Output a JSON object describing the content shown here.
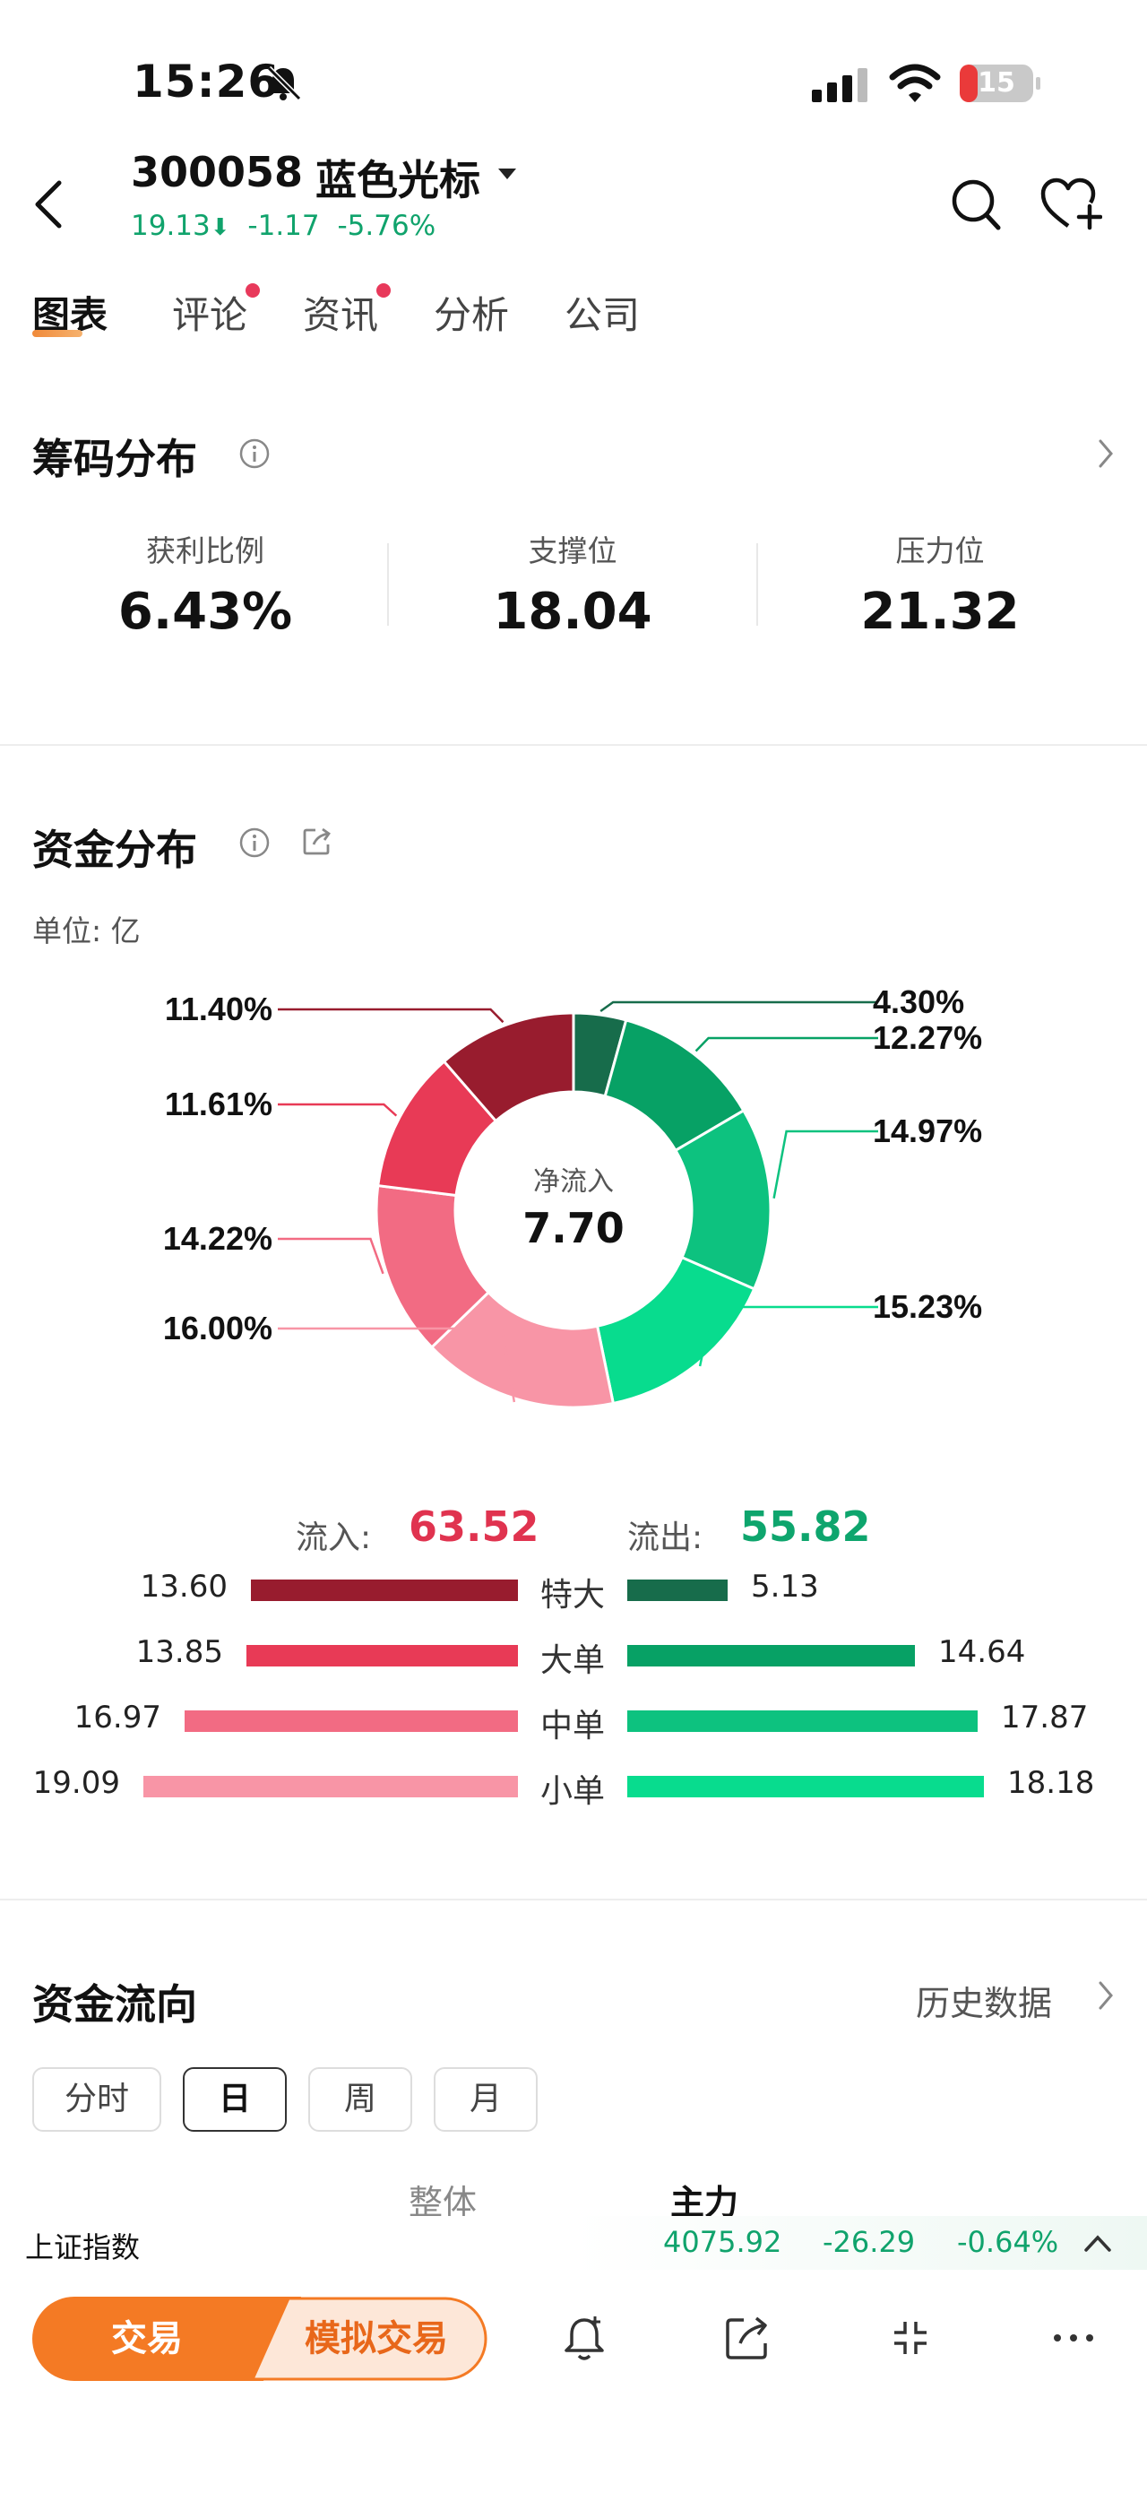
{
  "status": {
    "time": "15:26",
    "battery": "15"
  },
  "header": {
    "code": "300058",
    "name": "蓝色光标",
    "price": "19.13",
    "change": "-1.17",
    "change_pct": "-5.76%"
  },
  "tabs": [
    {
      "label": "图表",
      "active": true,
      "dot": false
    },
    {
      "label": "评论",
      "active": false,
      "dot": true
    },
    {
      "label": "资讯",
      "active": false,
      "dot": true
    },
    {
      "label": "分析",
      "active": false,
      "dot": false
    },
    {
      "label": "公司",
      "active": false,
      "dot": false
    }
  ],
  "chip": {
    "title": "筹码分布",
    "metrics": [
      {
        "label": "获利比例",
        "value": "6.43%"
      },
      {
        "label": "支撑位",
        "value": "18.04"
      },
      {
        "label": "压力位",
        "value": "21.32"
      }
    ]
  },
  "fund": {
    "title": "资金分布",
    "unit": "单位: 亿",
    "center_label": "净流入",
    "center_value": "7.70",
    "inflow_label": "流入:",
    "inflow_value": "63.52",
    "outflow_label": "流出:",
    "outflow_value": "55.82",
    "colors": {
      "in_super": "#981c2e",
      "in_large": "#e83a56",
      "in_medium": "#f26b83",
      "in_small": "#f895a6",
      "out_super": "#176c4b",
      "out_large": "#07a165",
      "out_medium": "#0dc27f",
      "out_small": "#08dc8e"
    }
  },
  "chart_data": {
    "type": "pie",
    "center_label": "净流入",
    "center_value": 7.7,
    "slices": [
      {
        "value": 4.3,
        "label": "4.30%",
        "color": "#176c4b"
      },
      {
        "value": 12.27,
        "label": "12.27%",
        "color": "#07a165"
      },
      {
        "value": 14.97,
        "label": "14.97%",
        "color": "#0dc27f"
      },
      {
        "value": 15.23,
        "label": "15.23%",
        "color": "#08dc8e"
      },
      {
        "value": 16.0,
        "label": "16.00%",
        "color": "#f895a6"
      },
      {
        "value": 14.22,
        "label": "14.22%",
        "color": "#f26b83"
      },
      {
        "value": 11.61,
        "label": "11.61%",
        "color": "#e83a56"
      },
      {
        "value": 11.4,
        "label": "11.40%",
        "color": "#981c2e"
      }
    ]
  },
  "flow_rows": [
    {
      "category": "特大",
      "inflow": "13.60",
      "outflow": "5.13",
      "inflow_num": 13.6,
      "outflow_num": 5.13,
      "in_color": "#981c2e",
      "out_color": "#176c4b"
    },
    {
      "category": "大单",
      "inflow": "13.85",
      "outflow": "14.64",
      "inflow_num": 13.85,
      "outflow_num": 14.64,
      "in_color": "#e83a56",
      "out_color": "#07a165"
    },
    {
      "category": "中单",
      "inflow": "16.97",
      "outflow": "17.87",
      "inflow_num": 16.97,
      "outflow_num": 17.87,
      "in_color": "#f26b83",
      "out_color": "#0dc27f"
    },
    {
      "category": "小单",
      "inflow": "19.09",
      "outflow": "18.18",
      "inflow_num": 19.09,
      "outflow_num": 18.18,
      "in_color": "#f895a6",
      "out_color": "#08dc8e"
    }
  ],
  "direction": {
    "title": "资金流向",
    "history_label": "历史数据",
    "pills": [
      {
        "label": "分时",
        "active": false
      },
      {
        "label": "日",
        "active": true
      },
      {
        "label": "周",
        "active": false
      },
      {
        "label": "月",
        "active": false
      }
    ],
    "col_whole": "整体",
    "col_main": "主力"
  },
  "index": {
    "name": "上证指数",
    "value": "4075.92",
    "change": "-26.29",
    "change_pct": "-0.64%"
  },
  "bottom": {
    "trade_label": "交易",
    "sim_label": "模拟交易"
  }
}
